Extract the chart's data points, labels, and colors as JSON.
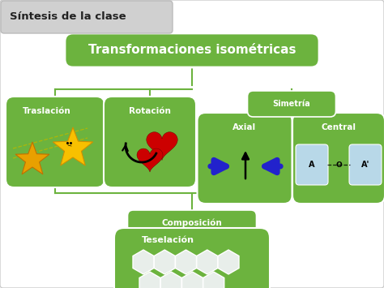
{
  "bg_color": "#ffffff",
  "green": "#6cb33e",
  "green_light": "#7dc94e",
  "header_bg": "#d8d8d8",
  "header_text": "Síntesis de la clase",
  "root_label": "Transformaciones isométricas",
  "traslacion_label": "Traslación",
  "rotacion_label": "Rotación",
  "simetria_label": "Simetría",
  "axial_label": "Axial",
  "central_label": "Central",
  "composicion_label": "Composición",
  "teselacion_label": "Teselación",
  "line_color": "#6cb33e",
  "brace_color": "#a0b000",
  "hex_color": "#e8eeea",
  "hex_edge": "#ffffff"
}
